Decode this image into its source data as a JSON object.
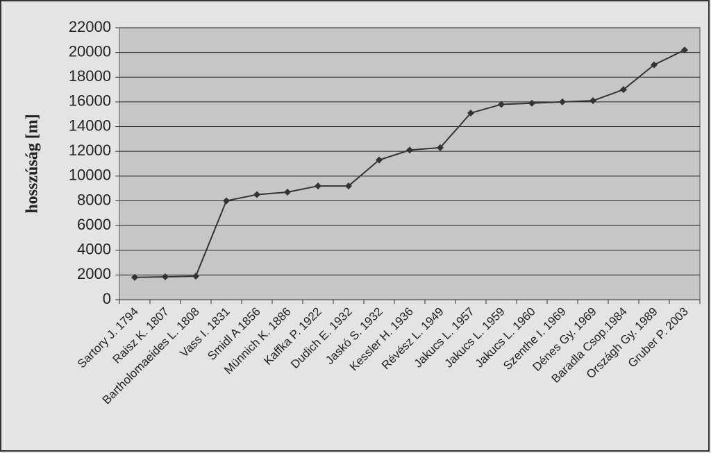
{
  "chart_data": {
    "type": "line",
    "y_label": "hosszúság [m]",
    "categories": [
      "Sartory J. 1794",
      "Raisz K. 1807",
      "Bartholomaeides L. 1808",
      "Vass I. 1831",
      "Smidl A 1856",
      "Münnich K. 1886",
      "Kaffka P. 1922",
      "Dudich E. 1932",
      "Jaskó S. 1932",
      "Kessler H. 1936",
      "Révész L. 1949",
      "Jakucs L. 1957",
      "Jakucs L. 1959",
      "Jakucs L. 1960",
      "Szenthe I. 1969",
      "Dénes Gy. 1969",
      "Baradla Csop.1984",
      "Országh Gy. 1989",
      "Gruber P. 2003"
    ],
    "series": [
      {
        "name": "hosszúság",
        "color": "#333333",
        "values": [
          1800,
          1850,
          1900,
          8000,
          8500,
          8700,
          9200,
          9200,
          11300,
          12100,
          12300,
          15100,
          15800,
          15900,
          16000,
          16100,
          17000,
          19000,
          20200
        ]
      }
    ],
    "ylim": [
      0,
      22000
    ],
    "yticks": [
      0,
      2000,
      4000,
      6000,
      8000,
      10000,
      12000,
      14000,
      16000,
      18000,
      20000,
      22000
    ],
    "grid": true
  }
}
